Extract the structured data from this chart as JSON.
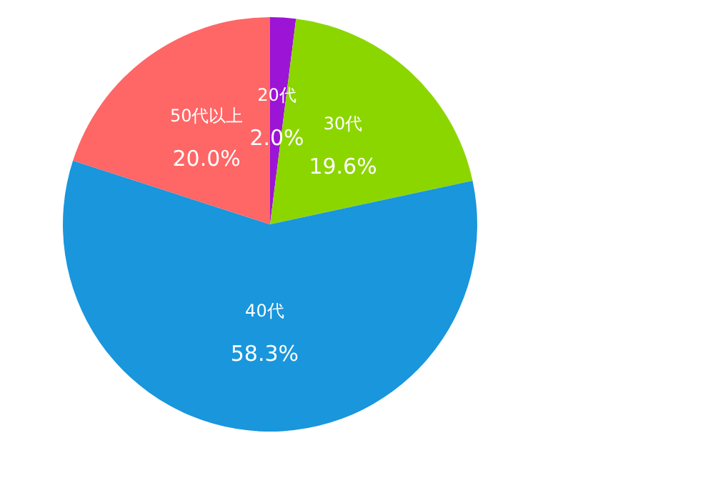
{
  "chart_data": {
    "type": "pie",
    "categories": [
      "20代",
      "30代",
      "40代",
      "50代以上"
    ],
    "values": [
      2.0,
      19.6,
      58.3,
      20.0
    ],
    "value_labels": [
      "2.0%",
      "19.6%",
      "58.3%",
      "20.0%"
    ],
    "colors": [
      "#9c14d6",
      "#8cd600",
      "#1996dc",
      "#ff6666"
    ],
    "legend": false
  }
}
